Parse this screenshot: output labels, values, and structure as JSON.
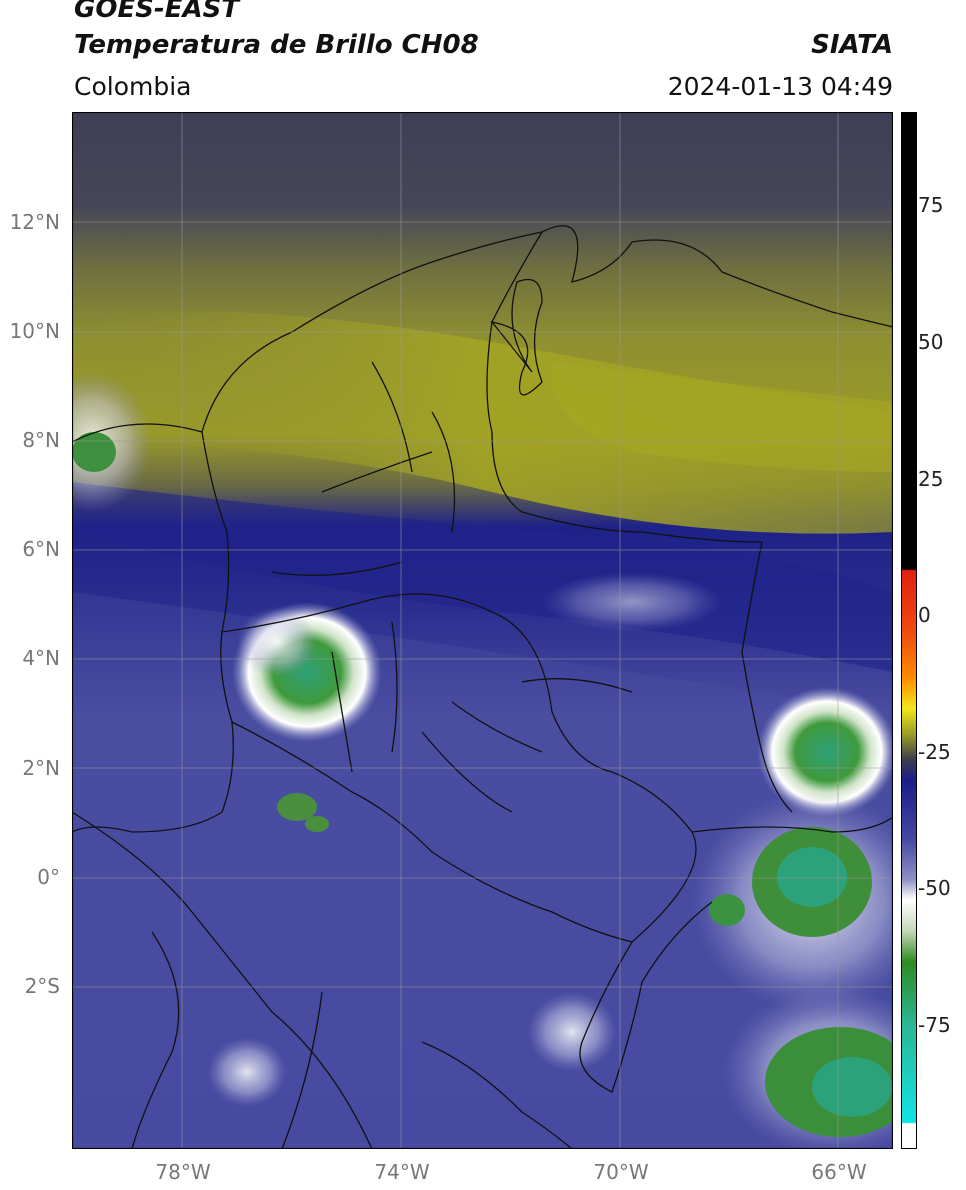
{
  "header": {
    "satellite": "GOES-EAST",
    "product": "Temperatura de Brillo CH08",
    "agency": "SIATA",
    "region": "Colombia",
    "datetime": "2024-01-13 04:49"
  },
  "map": {
    "lat_labels": [
      "12°N",
      "10°N",
      "8°N",
      "6°N",
      "4°N",
      "2°N",
      "0°",
      "2°S"
    ],
    "lon_labels": [
      "78°W",
      "74°W",
      "70°W",
      "66°W"
    ]
  },
  "colorbar": {
    "labels": [
      "75",
      "50",
      "25",
      "0",
      "-25",
      "-50",
      "-75"
    ],
    "colors": {
      "top": "#000000",
      "red": "#e02010",
      "orange": "#ff8a00",
      "yellow": "#f2e61c",
      "olive": "#9c9d25",
      "dark": "#3c3c4e",
      "navy": "#1a1e8a",
      "lavender": "#8d8fc4",
      "white": "#ffffff",
      "green": "#2f8a22",
      "teal": "#2bb694",
      "cyan": "#12e4e6"
    }
  }
}
